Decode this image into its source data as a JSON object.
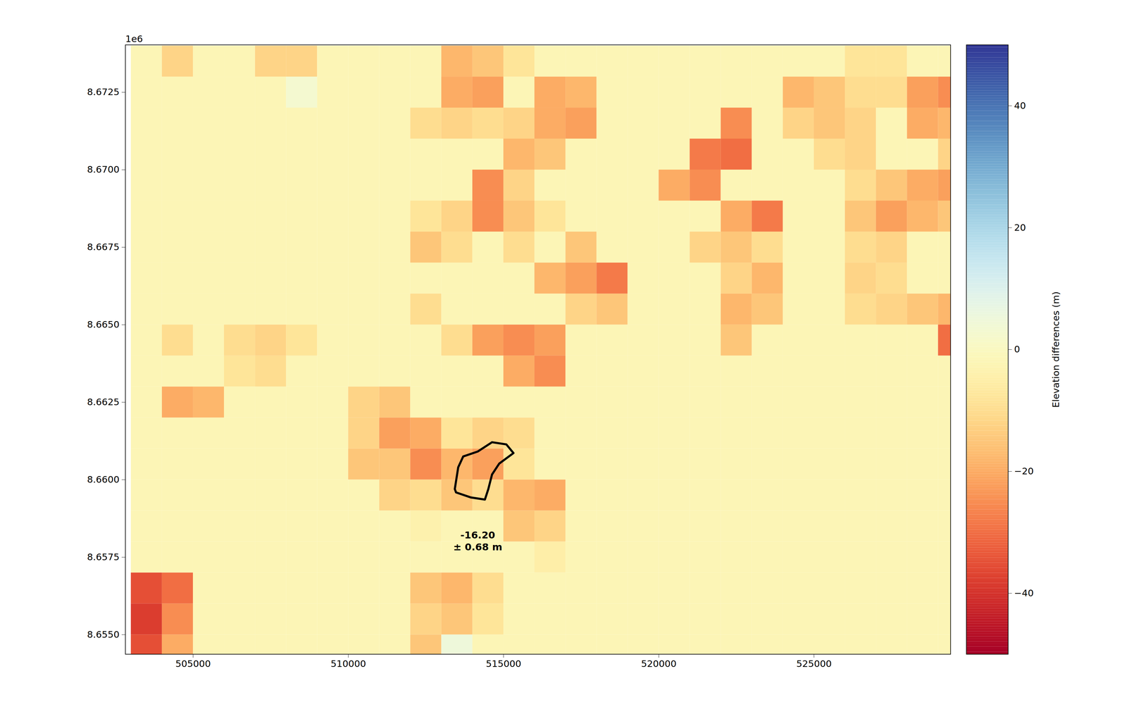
{
  "chart_data": {
    "type": "heatmap",
    "color": "RdYlBu",
    "xlim": [
      502820,
      529400
    ],
    "ylim": [
      8654370,
      8674030
    ],
    "xticks": [
      505000,
      510000,
      515000,
      520000,
      525000
    ],
    "yticks": [
      {
        "value": 8655000,
        "label": "8.6550"
      },
      {
        "value": 8657500,
        "label": "8.6575"
      },
      {
        "value": 8660000,
        "label": "8.6600"
      },
      {
        "value": 8662500,
        "label": "8.6625"
      },
      {
        "value": 8665000,
        "label": "8.6650"
      },
      {
        "value": 8667500,
        "label": "8.6675"
      },
      {
        "value": 8670000,
        "label": "8.6700"
      },
      {
        "value": 8672500,
        "label": "8.6725"
      }
    ],
    "colorbar": {
      "label": "Elevation differences (m)",
      "range": [
        -50,
        50
      ],
      "ticks": [
        -40,
        -20,
        0,
        20,
        40
      ]
    },
    "cells": {
      "x0": 503000,
      "y0": 8674000,
      "cell_size": 1000,
      "values": [
        [
          -2,
          -12,
          -2,
          -2,
          -12,
          -12,
          -2,
          -2,
          -2,
          -2,
          -18,
          -15,
          -8,
          -2,
          -2,
          -2,
          -2,
          -2,
          -2,
          -2,
          -2,
          -2,
          -2,
          -8,
          -8,
          -2,
          -2
        ],
        [
          -2,
          -2,
          -2,
          -2,
          -2,
          3,
          -2,
          -2,
          -2,
          -2,
          -20,
          -22,
          -2,
          -20,
          -18,
          -2,
          -2,
          -2,
          -2,
          -2,
          -2,
          -18,
          -15,
          -10,
          -10,
          -22,
          -25
        ],
        [
          -2,
          -2,
          -2,
          -2,
          -2,
          -2,
          -2,
          -2,
          -2,
          -10,
          -12,
          -10,
          -12,
          -20,
          -22,
          -2,
          -2,
          -2,
          -2,
          -25,
          -2,
          -12,
          -15,
          -12,
          -2,
          -20,
          -18
        ],
        [
          -2,
          -2,
          -2,
          -2,
          -2,
          -2,
          -2,
          -2,
          -2,
          -2,
          -2,
          -2,
          -18,
          -15,
          -2,
          -2,
          -2,
          -2,
          -28,
          -30,
          -2,
          -2,
          -10,
          -12,
          -2,
          -2,
          -12
        ],
        [
          -2,
          -2,
          -2,
          -2,
          -2,
          -2,
          -2,
          -2,
          -2,
          -2,
          -2,
          -25,
          -12,
          -2,
          -2,
          -2,
          -2,
          -20,
          -25,
          -2,
          -2,
          -2,
          -2,
          -10,
          -15,
          -20,
          -22
        ],
        [
          -2,
          -2,
          -2,
          -2,
          -2,
          -2,
          -2,
          -2,
          -2,
          -8,
          -12,
          -25,
          -15,
          -8,
          -2,
          -2,
          -2,
          -2,
          -2,
          -20,
          -28,
          -2,
          -2,
          -15,
          -22,
          -18,
          -15
        ],
        [
          -2,
          -2,
          -2,
          -2,
          -2,
          -2,
          -2,
          -2,
          -2,
          -15,
          -10,
          -2,
          -10,
          -2,
          -15,
          -2,
          -2,
          -2,
          -12,
          -15,
          -10,
          -2,
          -2,
          -10,
          -12,
          -2,
          -2
        ],
        [
          -2,
          -2,
          -2,
          -2,
          -2,
          -2,
          -2,
          -2,
          -2,
          -2,
          -2,
          -2,
          -2,
          -18,
          -22,
          -28,
          -2,
          -2,
          -2,
          -12,
          -18,
          -2,
          -2,
          -12,
          -10,
          -2,
          -2
        ],
        [
          -2,
          -2,
          -2,
          -2,
          -2,
          -2,
          -2,
          -2,
          -2,
          -10,
          -2,
          -2,
          -2,
          -2,
          -12,
          -15,
          -2,
          -2,
          -2,
          -18,
          -15,
          -2,
          -2,
          -10,
          -12,
          -15,
          -18
        ],
        [
          -2,
          -10,
          -2,
          -10,
          -12,
          -8,
          -2,
          -2,
          -2,
          -2,
          -10,
          -22,
          -25,
          -22,
          -2,
          -2,
          -2,
          -2,
          -2,
          -15,
          -2,
          -2,
          -2,
          -2,
          -2,
          -2,
          -30
        ],
        [
          -2,
          -2,
          -2,
          -8,
          -10,
          -2,
          -2,
          -2,
          -2,
          -2,
          -2,
          -2,
          -20,
          -25,
          -2,
          -2,
          -2,
          -2,
          -2,
          -2,
          -2,
          -2,
          -2,
          -2,
          -2,
          -2,
          -2
        ],
        [
          -2,
          -20,
          -18,
          -2,
          -2,
          -2,
          -2,
          -12,
          -15,
          -2,
          -2,
          -2,
          -2,
          -2,
          -2,
          -2,
          -2,
          -2,
          -2,
          -2,
          -2,
          -2,
          -2,
          -2,
          -2,
          -2,
          -2
        ],
        [
          -2,
          -2,
          -2,
          -2,
          -2,
          -2,
          -2,
          -12,
          -22,
          -20,
          -8,
          -12,
          -10,
          -2,
          -2,
          -2,
          -2,
          -2,
          -2,
          -2,
          -2,
          -2,
          -2,
          -2,
          -2,
          -2,
          -2
        ],
        [
          -2,
          -2,
          -2,
          -2,
          -2,
          -2,
          -2,
          -15,
          -15,
          -25,
          -18,
          -22,
          -8,
          -2,
          -2,
          -2,
          -2,
          -2,
          -2,
          -2,
          -2,
          -2,
          -2,
          -2,
          -2,
          -2,
          -2
        ],
        [
          -2,
          -2,
          -2,
          -2,
          -2,
          -2,
          -2,
          -2,
          -12,
          -10,
          -15,
          -10,
          -18,
          -20,
          -2,
          -2,
          -2,
          -2,
          -2,
          -2,
          -2,
          -2,
          -2,
          -2,
          -2,
          -2,
          -2
        ],
        [
          -2,
          -2,
          -2,
          -2,
          -2,
          -2,
          -2,
          -2,
          -2,
          -4,
          -2,
          -2,
          -15,
          -12,
          -2,
          -2,
          -2,
          -2,
          -2,
          -2,
          -2,
          -2,
          -2,
          -2,
          -2,
          -2,
          -2
        ],
        [
          -2,
          -2,
          -2,
          -2,
          -2,
          -2,
          -2,
          -2,
          -2,
          -2,
          -2,
          -2,
          -2,
          -5,
          -2,
          -2,
          -2,
          -2,
          -2,
          -2,
          -2,
          -2,
          -2,
          -2,
          -2,
          -2,
          -2
        ],
        [
          -35,
          -30,
          -2,
          -2,
          -2,
          -2,
          -2,
          -2,
          -2,
          -15,
          -18,
          -10,
          -2,
          -2,
          -2,
          -2,
          -2,
          -2,
          -2,
          -2,
          -2,
          -2,
          -2,
          -2,
          -2,
          -2,
          -2
        ],
        [
          -38,
          -25,
          -2,
          -2,
          -2,
          -2,
          -2,
          -2,
          -2,
          -12,
          -15,
          -8,
          -2,
          -2,
          -2,
          -2,
          -2,
          -2,
          -2,
          -2,
          -2,
          -2,
          -2,
          -2,
          -2,
          -2,
          -2
        ],
        [
          -35,
          -20,
          -2,
          -2,
          -2,
          -2,
          -2,
          -2,
          -2,
          -15,
          5,
          -2,
          -2,
          -2,
          -2,
          -2,
          -2,
          -2,
          -2,
          -2,
          -2,
          -2,
          -2,
          -2,
          -2,
          -2,
          -2
        ]
      ]
    },
    "outline": [
      [
        513430,
        8659700
      ],
      [
        513540,
        8660400
      ],
      [
        513700,
        8660750
      ],
      [
        514170,
        8660910
      ],
      [
        514630,
        8661210
      ],
      [
        515090,
        8661140
      ],
      [
        515320,
        8660860
      ],
      [
        514860,
        8660520
      ],
      [
        514630,
        8660170
      ],
      [
        514510,
        8659700
      ],
      [
        514400,
        8659360
      ],
      [
        513940,
        8659430
      ],
      [
        513470,
        8659590
      ]
    ],
    "annotations": [
      {
        "text": "1e6"
      },
      {
        "text": "-16.20\n± 0.68 m",
        "x": 514170,
        "y": 8658040
      }
    ]
  }
}
